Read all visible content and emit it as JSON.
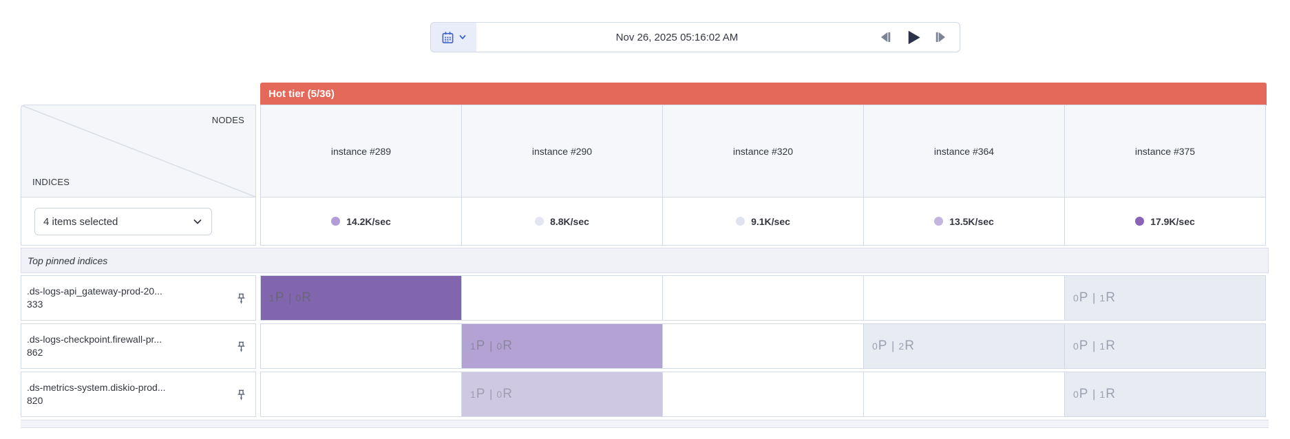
{
  "toolbar": {
    "datetime": "Nov 26, 2025 05:16:02 AM",
    "icons": [
      "calendar-icon",
      "chevron-down-icon",
      "step-backward-icon",
      "play-icon",
      "step-forward-icon"
    ]
  },
  "tier": {
    "label": "Hot tier (5/36)",
    "color": "#e4695a"
  },
  "axis": {
    "columns_label": "NODES",
    "rows_label": "INDICES"
  },
  "filter": {
    "value": "4 items selected"
  },
  "section_label": "Top pinned indices",
  "nodes": [
    {
      "name": "instance #289",
      "rate": "14.2K/sec",
      "dot_color": "#b29dd6"
    },
    {
      "name": "instance #290",
      "rate": "8.8K/sec",
      "dot_color": "#e3e5f3"
    },
    {
      "name": "instance #320",
      "rate": "9.1K/sec",
      "dot_color": "#e0e3ef"
    },
    {
      "name": "instance #364",
      "rate": "13.5K/sec",
      "dot_color": "#c4b5df"
    },
    {
      "name": "instance #375",
      "rate": "17.9K/sec",
      "dot_color": "#8a62b6"
    }
  ],
  "cell_styles": {
    "p": {
      "bg": "#8165ad",
      "text": "#69657c"
    },
    "m": {
      "bg": "#b3a2d3",
      "text": "#8b87a0"
    },
    "l": {
      "bg": "#cfc8e2",
      "text": "#a29cb2"
    },
    "g": {
      "bg": "#e9ebf2",
      "text": "#9aa2b2"
    }
  },
  "indices": [
    {
      "name_line1": ".ds-logs-api_gateway-prod-20...",
      "name_line2": "333",
      "cells": [
        {
          "primaries": 1,
          "replicas": 0,
          "style": "p"
        },
        null,
        null,
        null,
        {
          "primaries": 0,
          "replicas": 1,
          "style": "g"
        }
      ]
    },
    {
      "name_line1": ".ds-logs-checkpoint.firewall-pr...",
      "name_line2": "862",
      "cells": [
        null,
        {
          "primaries": 1,
          "replicas": 0,
          "style": "m"
        },
        null,
        {
          "primaries": 0,
          "replicas": 2,
          "style": "g"
        },
        {
          "primaries": 0,
          "replicas": 1,
          "style": "g"
        }
      ]
    },
    {
      "name_line1": ".ds-metrics-system.diskio-prod...",
      "name_line2": "820",
      "cells": [
        null,
        {
          "primaries": 1,
          "replicas": 0,
          "style": "l"
        },
        null,
        null,
        {
          "primaries": 0,
          "replicas": 1,
          "style": "g"
        }
      ]
    }
  ]
}
